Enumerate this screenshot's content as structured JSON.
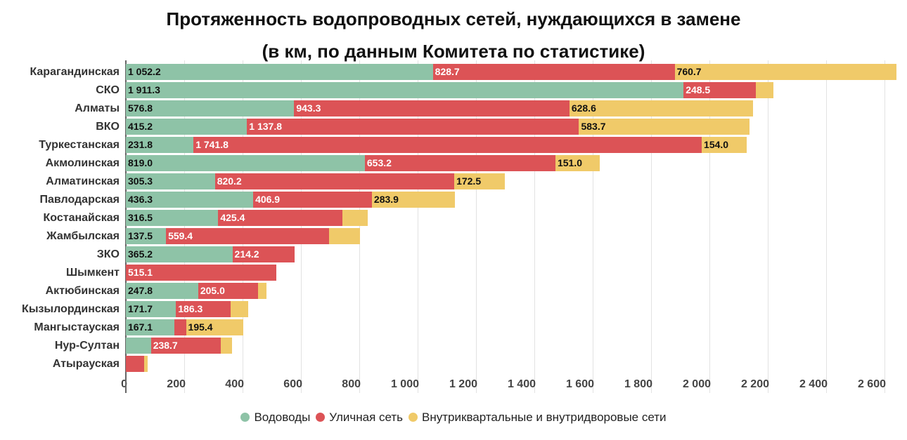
{
  "chart_data": {
    "type": "bar",
    "orientation": "horizontal",
    "stacked": true,
    "title": "Протяженность водопроводных сетей, нуждающихся в замене",
    "subtitle": "(в км, по данным Комитета по статистике)",
    "xlabel": "",
    "ylabel": "",
    "xlim": [
      0,
      2650
    ],
    "xticks": [
      0,
      200,
      400,
      600,
      800,
      1000,
      1200,
      1400,
      1600,
      1800,
      2000,
      2200,
      2400,
      2600
    ],
    "xtick_labels": [
      "0",
      "200",
      "400",
      "600",
      "800",
      "1 000",
      "1 200",
      "1 400",
      "1 600",
      "1 800",
      "2 000",
      "2 200",
      "2 400",
      "2 600"
    ],
    "grid": true,
    "legend_position": "bottom",
    "categories": [
      "Карагандинская",
      "СКО",
      "Алматы",
      "ВКО",
      "Туркестанская",
      "Акмолинская",
      "Алматинская",
      "Павлодарская",
      "Костанайская",
      "Жамбылская",
      "ЗКО",
      "Шымкент",
      "Актюбинская",
      "Кызылординская",
      "Мангыстауская",
      "Нур-Султан",
      "Атырауская"
    ],
    "series": [
      {
        "name": "Водоводы",
        "color": "#8ec3a7",
        "text_color": "#111111",
        "values": [
          1052.2,
          1911.3,
          576.8,
          415.2,
          231.8,
          819.0,
          305.3,
          436.3,
          316.5,
          137.5,
          365.2,
          0,
          247.8,
          171.7,
          167.1,
          86,
          0
        ],
        "labels": [
          "1 052.2",
          "1 911.3",
          "576.8",
          "415.2",
          "231.8",
          "819.0",
          "305.3",
          "436.3",
          "316.5",
          "137.5",
          "365.2",
          "",
          "247.8",
          "171.7",
          "167.1",
          "",
          ""
        ]
      },
      {
        "name": "Уличная сеть",
        "color": "#dc5356",
        "text_color": "#ffffff",
        "values": [
          828.7,
          248.5,
          943.3,
          1137.8,
          1741.8,
          653.2,
          820.2,
          406.9,
          425.4,
          559.4,
          214.2,
          515.1,
          205.0,
          186.3,
          39,
          238.7,
          63
        ],
        "labels": [
          "828.7",
          "248.5",
          "943.3",
          "1 137.8",
          "1 741.8",
          "653.2",
          "820.2",
          "406.9",
          "425.4",
          "559.4",
          "214.2",
          "515.1",
          "205.0",
          "186.3",
          "",
          "238.7",
          ""
        ]
      },
      {
        "name": "Внутриквартальные и внутридворовые сети",
        "color": "#f0ca69",
        "text_color": "#111111",
        "values": [
          760.7,
          60,
          628.6,
          583.7,
          154.0,
          151.0,
          172.5,
          283.9,
          86,
          106,
          0,
          0,
          29,
          61,
          195.4,
          40,
          11
        ],
        "labels": [
          "760.7",
          "",
          "628.6",
          "583.7",
          "154.0",
          "151.0",
          "172.5",
          "283.9",
          "",
          "",
          "",
          "",
          "",
          "",
          "195.4",
          "",
          ""
        ]
      }
    ]
  }
}
